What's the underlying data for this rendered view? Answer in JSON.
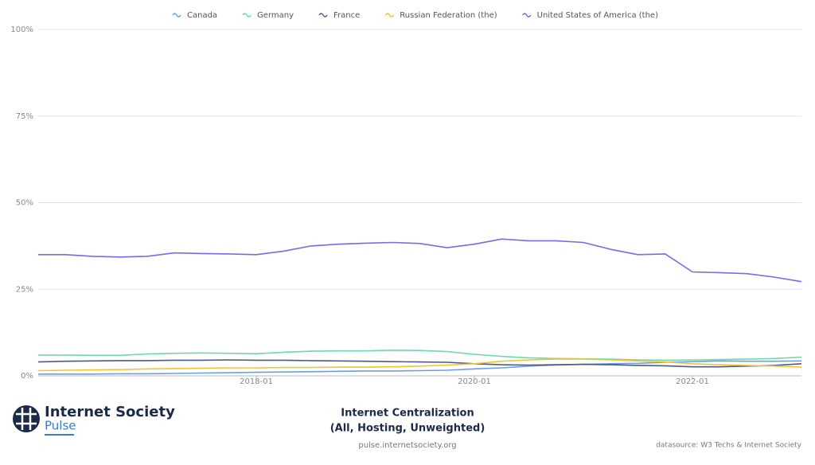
{
  "chart_data": {
    "type": "line",
    "title": "Internet Centralization",
    "subtitle": "(All, Hosting, Unweighted)",
    "x": [
      "2016-01",
      "2016-04",
      "2016-07",
      "2016-10",
      "2017-01",
      "2017-04",
      "2017-07",
      "2017-10",
      "2018-01",
      "2018-04",
      "2018-07",
      "2018-10",
      "2019-01",
      "2019-04",
      "2019-07",
      "2019-10",
      "2020-01",
      "2020-04",
      "2020-07",
      "2020-10",
      "2021-01",
      "2021-04",
      "2021-07",
      "2021-10",
      "2022-01",
      "2022-04",
      "2022-07",
      "2022-10",
      "2023-01"
    ],
    "xlim": [
      "2016-01",
      "2023-01"
    ],
    "xticks": [
      "2018-01",
      "2020-01",
      "2022-01"
    ],
    "ylim": [
      0,
      100
    ],
    "yticks": [
      {
        "value": 0,
        "label": "0%"
      },
      {
        "value": 25,
        "label": "25%"
      },
      {
        "value": 50,
        "label": "50%"
      },
      {
        "value": 75,
        "label": "75%"
      },
      {
        "value": 100,
        "label": "100%"
      }
    ],
    "grid": true,
    "legend": "top",
    "series": [
      {
        "name": "Canada",
        "color": "#6b9ee8",
        "values": [
          0.5,
          0.5,
          0.5,
          0.6,
          0.6,
          0.7,
          0.8,
          0.9,
          1,
          1.1,
          1.2,
          1.3,
          1.4,
          1.4,
          1.5,
          1.6,
          2,
          2.3,
          2.8,
          3.1,
          3.3,
          3.5,
          3.6,
          3.9,
          4.1,
          4.3,
          4.2,
          4.2,
          4.3
        ]
      },
      {
        "name": "Germany",
        "color": "#6fd6b0",
        "values": [
          6,
          6,
          5.9,
          5.9,
          6.3,
          6.5,
          6.6,
          6.5,
          6.4,
          6.8,
          7.1,
          7.2,
          7.2,
          7.4,
          7.3,
          7,
          6.2,
          5.6,
          5.2,
          5,
          4.9,
          4.8,
          4.6,
          4.5,
          4.6,
          4.7,
          4.8,
          5,
          5.4
        ]
      },
      {
        "name": "France",
        "color": "#4f5b7e",
        "values": [
          4,
          4.2,
          4.3,
          4.4,
          4.4,
          4.5,
          4.5,
          4.6,
          4.5,
          4.5,
          4.4,
          4.3,
          4.2,
          4.1,
          4,
          3.9,
          3.5,
          3.2,
          3.1,
          3.2,
          3.3,
          3.2,
          3,
          2.9,
          2.6,
          2.6,
          2.8,
          3,
          3.5
        ]
      },
      {
        "name": "Russian Federation (the)",
        "color": "#f5c332",
        "values": [
          1.5,
          1.6,
          1.7,
          1.8,
          2,
          2.1,
          2.2,
          2.3,
          2.3,
          2.4,
          2.4,
          2.5,
          2.5,
          2.6,
          2.8,
          3.1,
          3.5,
          4.2,
          4.6,
          4.8,
          4.8,
          4.6,
          4.3,
          4,
          3.5,
          3.2,
          3,
          2.8,
          2.5
        ]
      },
      {
        "name": "United States of America (the)",
        "color": "#7b68ee",
        "values": [
          35,
          35,
          34.5,
          34.3,
          34.5,
          35.5,
          35.3,
          35.2,
          35,
          36,
          37.5,
          38,
          38.3,
          38.5,
          38.2,
          37,
          38,
          39.5,
          39,
          39,
          38.5,
          36.5,
          35,
          35.2,
          30,
          29.8,
          29.5,
          28.5,
          27.2
        ]
      }
    ]
  },
  "footer": {
    "brand": "Internet Society",
    "product": "Pulse",
    "url": "pulse.internetsociety.org",
    "source": "datasource: W3 Techs & Internet Society"
  }
}
